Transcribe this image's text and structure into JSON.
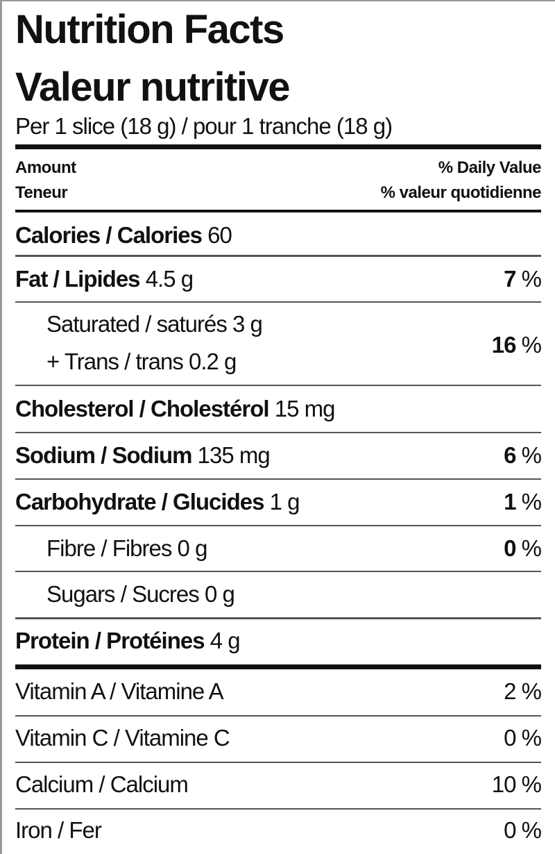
{
  "title_en": "Nutrition Facts",
  "title_fr": "Valeur nutritive",
  "serving": "Per 1 slice (18 g) / pour 1 tranche (18 g)",
  "header": {
    "amount_en": "Amount",
    "amount_fr": "Teneur",
    "dv_en": "% Daily Value",
    "dv_fr": "% valeur quotidienne"
  },
  "nutrients": [
    {
      "name": "Calories / Calories",
      "value": "60",
      "dv": ""
    },
    {
      "name": "Fat / Lipides",
      "value": "4.5 g",
      "dv": "7",
      "unit": "%"
    },
    {
      "name": "Saturated / saturés",
      "value": "3 g",
      "name2": "+ Trans / trans",
      "value2": "0.2 g",
      "dv": "16",
      "unit": "%"
    },
    {
      "name": "Cholesterol / Cholestérol",
      "value": "15 mg",
      "dv": ""
    },
    {
      "name": "Sodium / Sodium",
      "value": "135 mg",
      "dv": "6",
      "unit": "%"
    },
    {
      "name": "Carbohydrate / Glucides",
      "value": "1 g",
      "dv": "1",
      "unit": "%"
    },
    {
      "name": "Fibre / Fibres",
      "value": "0 g",
      "dv": "0",
      "unit": "%"
    },
    {
      "name": "Sugars / Sucres",
      "value": "0 g",
      "dv": ""
    },
    {
      "name": "Protein / Protéines",
      "value": "4 g",
      "dv": ""
    }
  ],
  "vitamins": [
    {
      "name": "Vitamin A / Vitamine A",
      "dv": "2 %"
    },
    {
      "name": "Vitamin C / Vitamine C",
      "dv": "0 %"
    },
    {
      "name": "Calcium / Calcium",
      "dv": "10 %"
    },
    {
      "name": "Iron / Fer",
      "dv": "0 %"
    }
  ]
}
